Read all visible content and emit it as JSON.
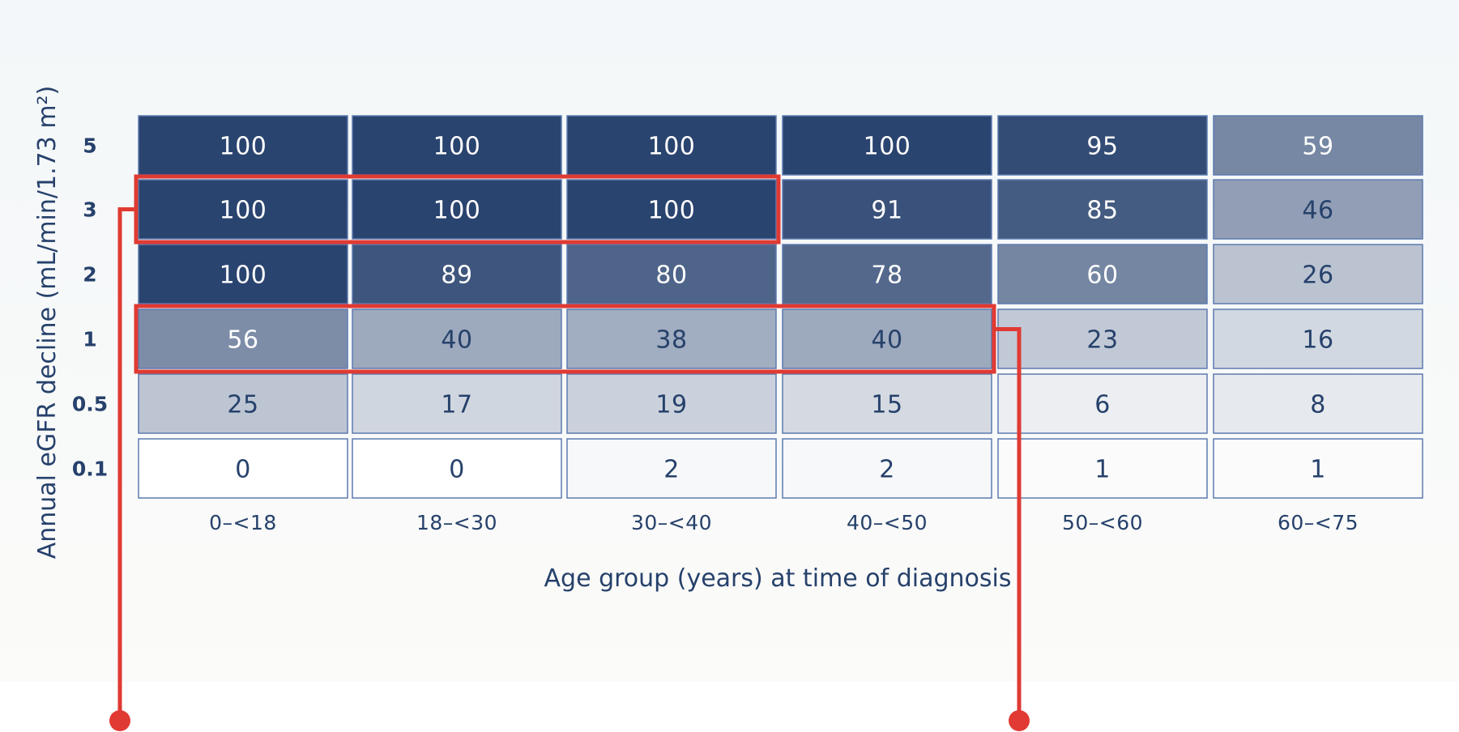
{
  "colors": {
    "text_dark": "#26416b",
    "text_light": "#ffffff",
    "highlight": "#e03a33",
    "cell_high": "#2a4470"
  },
  "chart_data": {
    "type": "heatmap",
    "title": "",
    "xlabel": "Age group (years) at time of diagnosis",
    "ylabel": "Annual eGFR decline (mL/min/1.73 m²)",
    "x_categories": [
      "0–<18",
      "18–<30",
      "30–<40",
      "40–<50",
      "50–<60",
      "60–<75"
    ],
    "y_categories": [
      "5",
      "3",
      "2",
      "1",
      "0.5",
      "0.1"
    ],
    "values": [
      [
        100,
        100,
        100,
        100,
        95,
        59
      ],
      [
        100,
        100,
        100,
        91,
        85,
        46
      ],
      [
        100,
        89,
        80,
        78,
        60,
        26
      ],
      [
        56,
        40,
        38,
        40,
        23,
        16
      ],
      [
        25,
        17,
        19,
        15,
        6,
        8
      ],
      [
        0,
        0,
        2,
        2,
        1,
        1
      ]
    ],
    "value_range": [
      0,
      100
    ],
    "highlights": [
      {
        "rows": [
          "3"
        ],
        "columns": [
          "0–<18",
          "18–<30",
          "30–<40"
        ]
      },
      {
        "rows": [
          "1"
        ],
        "columns": [
          "0–<18",
          "18–<30",
          "30–<40",
          "40–<50"
        ]
      }
    ],
    "legend": "none"
  }
}
